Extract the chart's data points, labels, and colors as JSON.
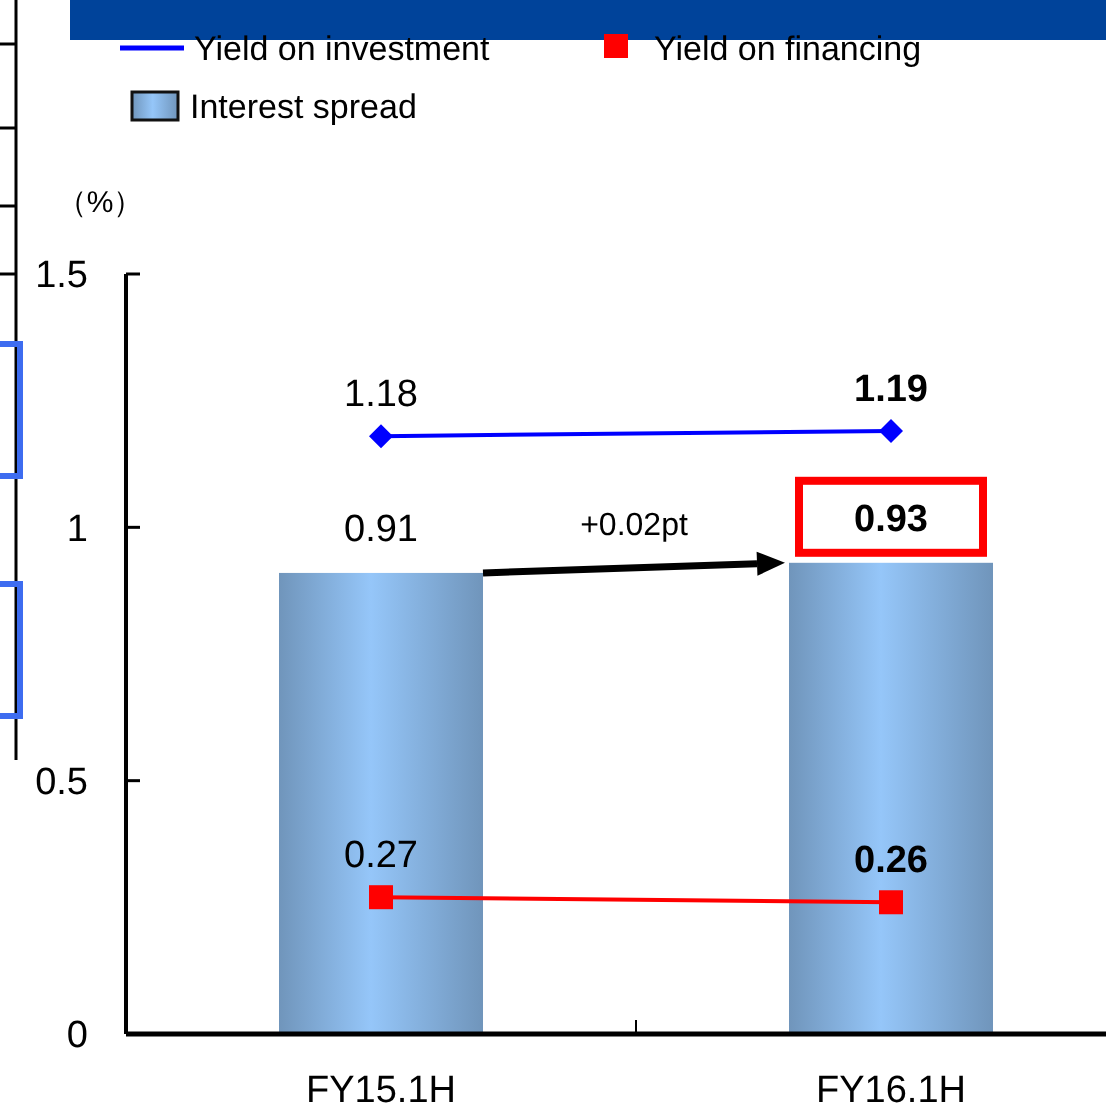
{
  "chart_data": {
    "type": "bar",
    "categories": [
      "FY15.1H",
      "FY16.1H"
    ],
    "series": [
      {
        "name": "Yield on investment",
        "type": "line",
        "color": "#0000ff",
        "marker": "diamond",
        "values": [
          1.18,
          1.19
        ]
      },
      {
        "name": "Yield on financing",
        "type": "line",
        "color": "#ff0000",
        "marker": "square",
        "values": [
          0.27,
          0.26
        ]
      },
      {
        "name": "Interest spread",
        "color": "#86b2e0",
        "values": [
          0.91,
          0.93
        ]
      }
    ],
    "ylabel": "（%）",
    "ylim": [
      0,
      1.5
    ],
    "yticks": [
      0,
      0.5,
      1,
      1.5
    ],
    "data_labels": true,
    "legend": "top",
    "annotations": [
      "+0.02pt"
    ]
  }
}
